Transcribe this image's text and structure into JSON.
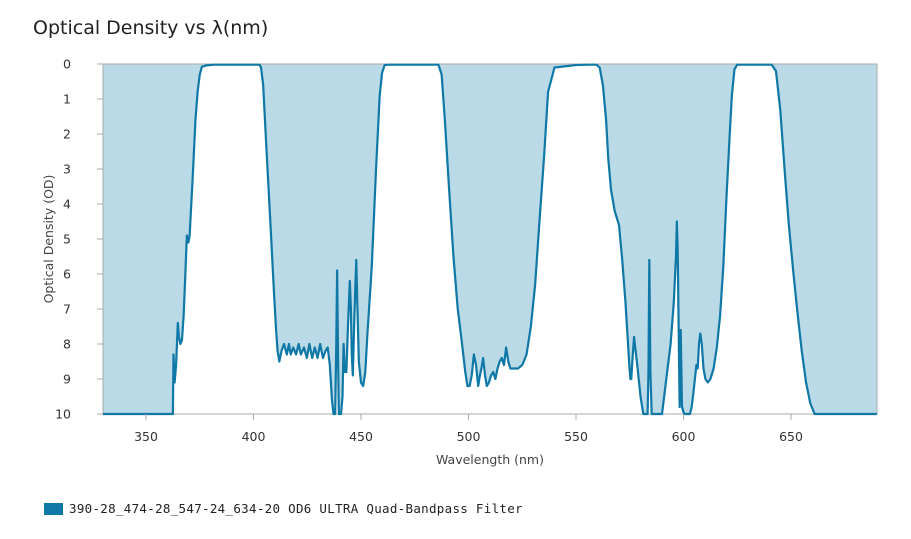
{
  "chart_data": {
    "type": "area",
    "title": "Optical Density vs λ(nm)",
    "xlabel": "Wavelength (nm)",
    "ylabel": "Optical Density (OD)",
    "xlim": [
      330,
      690
    ],
    "ylim": [
      0,
      10
    ],
    "y_inverted": true,
    "x_ticks": [
      350,
      400,
      450,
      500,
      550,
      600,
      650
    ],
    "y_ticks": [
      0,
      1,
      2,
      3,
      4,
      5,
      6,
      7,
      8,
      9,
      10
    ],
    "grid": false,
    "legend_position": "bottom-left",
    "colors": {
      "fill": "#b9dae6",
      "line": "#0f78a6",
      "axis": "#aaaaaa"
    },
    "series": [
      {
        "name": "390-28_474-28_547-24_634-20 OD6 ULTRA Quad-Bandpass Filter",
        "x": [
          330,
          362.5,
          362.8,
          363.3,
          364,
          364.8,
          365.3,
          366,
          366.7,
          367.5,
          368.3,
          369,
          369.7,
          370.3,
          370.8,
          371.5,
          372.3,
          373,
          374,
          375,
          376,
          378,
          382,
          390,
          398,
          402.8,
          403.5,
          404.5,
          406,
          408,
          409.5,
          410.5,
          411.2,
          412,
          413,
          414.2,
          415.5,
          416.5,
          417.3,
          418.5,
          419.8,
          421,
          422,
          423.5,
          424.8,
          426,
          427.3,
          428.5,
          429.8,
          431,
          432.3,
          433.5,
          434.5,
          435.5,
          436.5,
          437.2,
          438,
          438.5,
          438.9,
          439.3,
          439.7,
          440.2,
          440.7,
          441.4,
          441.9,
          442.5,
          443.2,
          444,
          444.8,
          445.3,
          445.7,
          446.2,
          446.8,
          447.3,
          447.8,
          448.3,
          449,
          450,
          451,
          452,
          453,
          455,
          457,
          458.7,
          459.8,
          461,
          463,
          470,
          480,
          486,
          487.5,
          489,
          491,
          493,
          495,
          497,
          498.5,
          499.5,
          500.5,
          501.5,
          502.5,
          503.5,
          504.5,
          505.3,
          506,
          506.8,
          507.7,
          508.5,
          509.5,
          510.5,
          511.5,
          512.5,
          513.5,
          514.5,
          515.5,
          516.5,
          517.5,
          518.5,
          519.5,
          521,
          523,
          525,
          527,
          529,
          531,
          533,
          535.2,
          537,
          540,
          550,
          556,
          558,
          559.5,
          561,
          562.5,
          564,
          565,
          566.3,
          568,
          570,
          571.5,
          573,
          574,
          574.8,
          575.3,
          575.7,
          576.2,
          577,
          578.5,
          580,
          581.3,
          582.4,
          582.9,
          583.3,
          583.7,
          584.1,
          584.6,
          585.2,
          586.5,
          588,
          590,
          592,
          594,
          595.5,
          596.5,
          596.9,
          597.3,
          597.7,
          598.2,
          598.7,
          599.3,
          600.3,
          601.3,
          602.2,
          603,
          603.8,
          604.6,
          605.3,
          606,
          606.6,
          607.2,
          607.8,
          608.5,
          609.3,
          610.2,
          611.3,
          612.5,
          614,
          615.5,
          617,
          618.5,
          620,
          621.5,
          622.5,
          623.7,
          625,
          630,
          636,
          641,
          643,
          645,
          647,
          649,
          651,
          653,
          655,
          657,
          659,
          661,
          690
        ],
        "y": [
          10,
          10,
          8.3,
          9.1,
          8.6,
          7.4,
          7.8,
          8.0,
          7.9,
          7.2,
          6.0,
          4.9,
          5.1,
          4.9,
          4.3,
          3.5,
          2.5,
          1.6,
          0.8,
          0.3,
          0.08,
          0.04,
          0.02,
          0.02,
          0.02,
          0.02,
          0.1,
          0.6,
          2.4,
          4.7,
          6.5,
          7.6,
          8.2,
          8.5,
          8.2,
          8.0,
          8.3,
          8.0,
          8.3,
          8.1,
          8.3,
          8.0,
          8.3,
          8.1,
          8.4,
          8.0,
          8.4,
          8.1,
          8.4,
          8.0,
          8.4,
          8.2,
          8.1,
          8.6,
          9.6,
          10,
          10,
          8.0,
          5.9,
          8.3,
          10,
          10,
          10,
          9.5,
          8.0,
          8.8,
          8.8,
          7.4,
          6.2,
          7.0,
          8.3,
          8.9,
          7.5,
          6.5,
          5.6,
          6.9,
          8.5,
          9.1,
          9.2,
          8.8,
          7.7,
          5.8,
          3.0,
          0.9,
          0.25,
          0.03,
          0.02,
          0.02,
          0.02,
          0.02,
          0.3,
          1.6,
          3.6,
          5.5,
          7.0,
          8.0,
          8.8,
          9.2,
          9.2,
          8.9,
          8.3,
          8.6,
          9.2,
          8.9,
          8.7,
          8.4,
          8.9,
          9.2,
          9.1,
          8.9,
          8.8,
          9.0,
          8.7,
          8.5,
          8.4,
          8.6,
          8.1,
          8.5,
          8.7,
          8.7,
          8.7,
          8.6,
          8.3,
          7.5,
          6.3,
          4.5,
          2.6,
          0.8,
          0.1,
          0.03,
          0.02,
          0.02,
          0.02,
          0.1,
          0.6,
          1.6,
          2.7,
          3.6,
          4.2,
          4.6,
          5.6,
          6.8,
          7.8,
          8.6,
          9.0,
          9.0,
          8.5,
          7.8,
          8.6,
          9.5,
          10,
          10,
          10,
          10,
          8.8,
          5.6,
          8.8,
          10,
          10,
          10,
          10,
          9.0,
          8.0,
          6.8,
          5.5,
          4.5,
          5.3,
          7.3,
          9.8,
          7.6,
          9.8,
          10,
          10,
          10,
          10,
          9.8,
          9.4,
          9.0,
          8.6,
          8.7,
          8.0,
          7.7,
          8.0,
          8.7,
          9.0,
          9.1,
          9.0,
          8.7,
          8.1,
          7.2,
          5.8,
          3.8,
          2.0,
          0.9,
          0.15,
          0.02,
          0.02,
          0.02,
          0.02,
          0.2,
          1.3,
          3.0,
          4.6,
          5.9,
          7.1,
          8.2,
          9.1,
          9.7,
          10,
          10
        ]
      }
    ]
  }
}
